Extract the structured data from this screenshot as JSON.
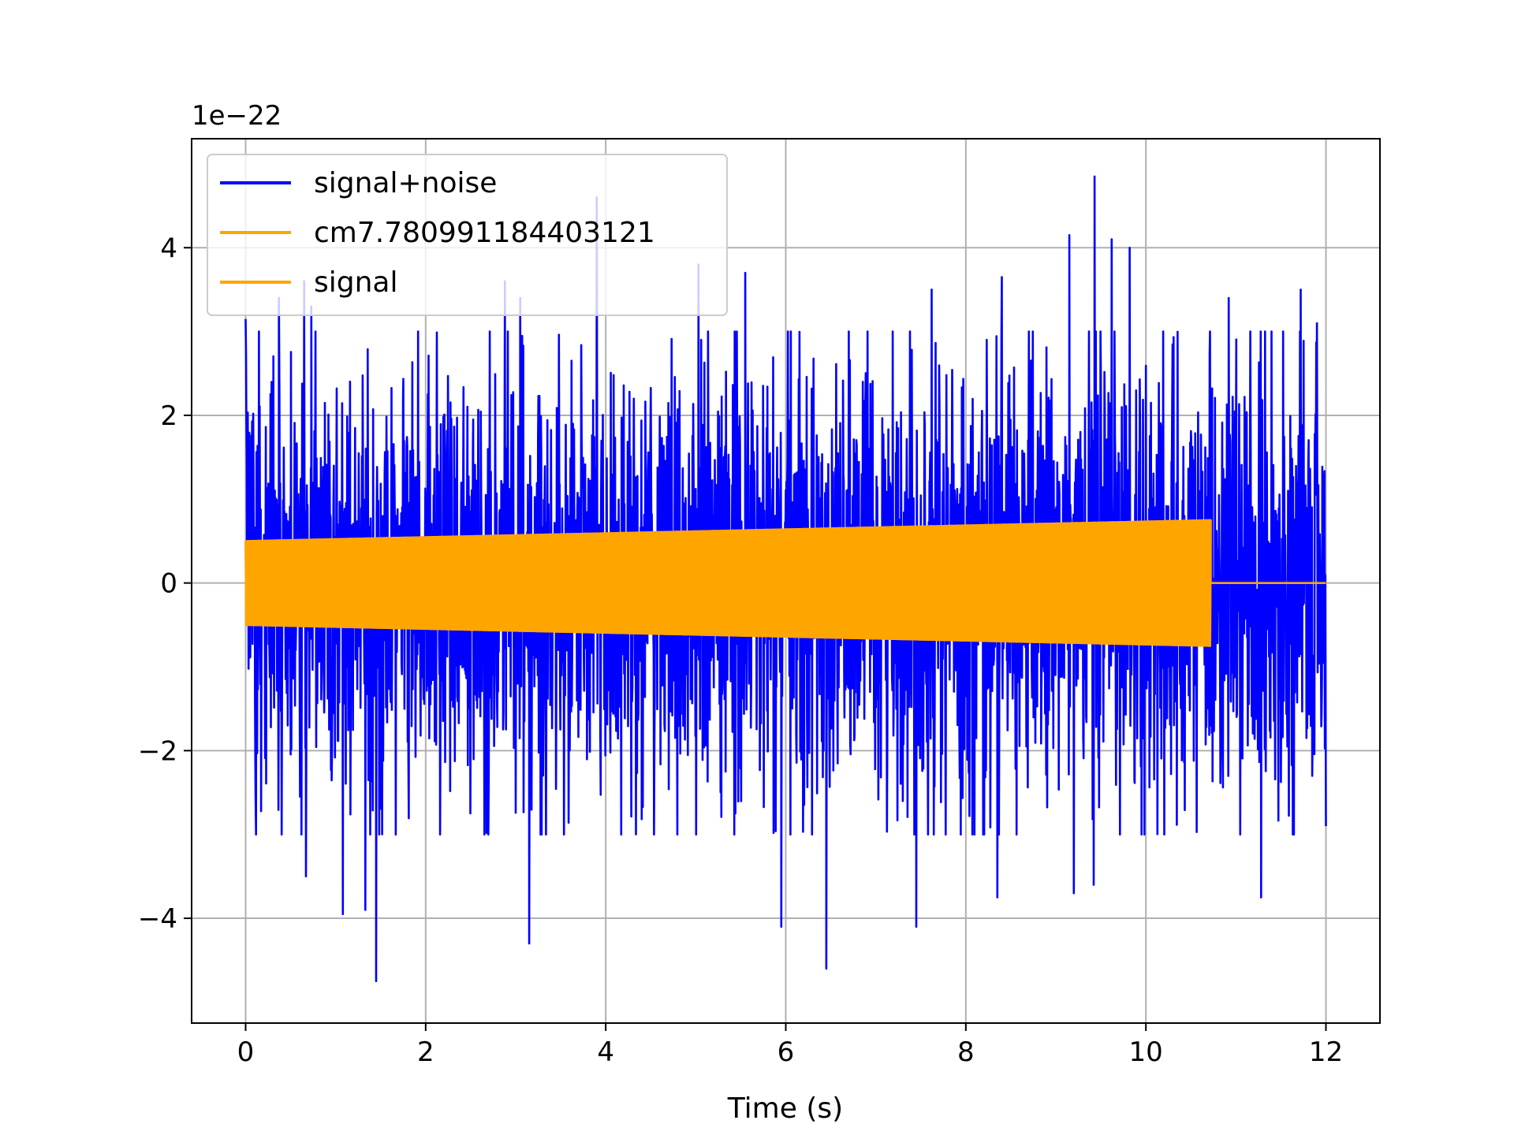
{
  "chart_data": {
    "type": "line",
    "title": "",
    "xlabel": "Time (s)",
    "ylabel": "",
    "offset_label": "1e−22",
    "xlim": [
      -0.6,
      12.6
    ],
    "ylim": [
      -5.25,
      5.3
    ],
    "xticks": [
      0,
      2,
      4,
      6,
      8,
      10,
      12
    ],
    "yticks": [
      -4,
      -2,
      0,
      2,
      4
    ],
    "xtick_labels": [
      "0",
      "2",
      "4",
      "6",
      "8",
      "10",
      "12"
    ],
    "ytick_labels": [
      "−4",
      "−2",
      "0",
      "2",
      "4"
    ],
    "grid": true,
    "legend_position": "upper-left",
    "series": [
      {
        "name": "signal+noise",
        "color": "#0000ff",
        "x_range": [
          0,
          12
        ],
        "envelope_typical": 2.2,
        "peaks": [
          {
            "x": 0.0,
            "y": 3.15
          },
          {
            "x": 0.37,
            "y": 3.4
          },
          {
            "x": 0.65,
            "y": 3.6
          },
          {
            "x": 0.73,
            "y": 3.3
          },
          {
            "x": 1.45,
            "y": 3.4
          },
          {
            "x": 2.88,
            "y": 3.6
          },
          {
            "x": 3.05,
            "y": 3.4
          },
          {
            "x": 3.9,
            "y": 4.6
          },
          {
            "x": 5.03,
            "y": 3.8
          },
          {
            "x": 5.55,
            "y": 3.7
          },
          {
            "x": 5.95,
            "y": 3.9
          },
          {
            "x": 6.45,
            "y": 3.6
          },
          {
            "x": 7.62,
            "y": 3.5
          },
          {
            "x": 8.4,
            "y": 3.65
          },
          {
            "x": 9.15,
            "y": 4.15
          },
          {
            "x": 9.43,
            "y": 4.85
          },
          {
            "x": 9.62,
            "y": 4.1
          },
          {
            "x": 9.82,
            "y": 4.0
          },
          {
            "x": 10.92,
            "y": 3.4
          },
          {
            "x": 11.72,
            "y": 3.5
          },
          {
            "x": 11.9,
            "y": 3.1
          },
          {
            "x": 0.11,
            "y": -2.55
          },
          {
            "x": 0.67,
            "y": -3.5
          },
          {
            "x": 1.08,
            "y": -3.95
          },
          {
            "x": 1.33,
            "y": -3.9
          },
          {
            "x": 1.45,
            "y": -4.75
          },
          {
            "x": 3.15,
            "y": -4.3
          },
          {
            "x": 5.95,
            "y": -4.1
          },
          {
            "x": 6.45,
            "y": -4.6
          },
          {
            "x": 7.45,
            "y": -4.1
          },
          {
            "x": 8.35,
            "y": -3.75
          },
          {
            "x": 9.2,
            "y": -3.7
          },
          {
            "x": 9.42,
            "y": -3.6
          },
          {
            "x": 11.28,
            "y": -3.75
          },
          {
            "x": 12.0,
            "y": -2.9
          }
        ]
      },
      {
        "name": "cm7.780991184403121",
        "color": "#ffa500",
        "x_range": [
          0,
          10.72
        ],
        "amplitude_start": 0.5,
        "amplitude_end": 0.75
      },
      {
        "name": "signal",
        "color": "#ffa500",
        "x_range": [
          0,
          12
        ],
        "amplitude_start": 0.5,
        "amplitude_end": 0.75,
        "end_of_signal": 10.72
      }
    ]
  }
}
